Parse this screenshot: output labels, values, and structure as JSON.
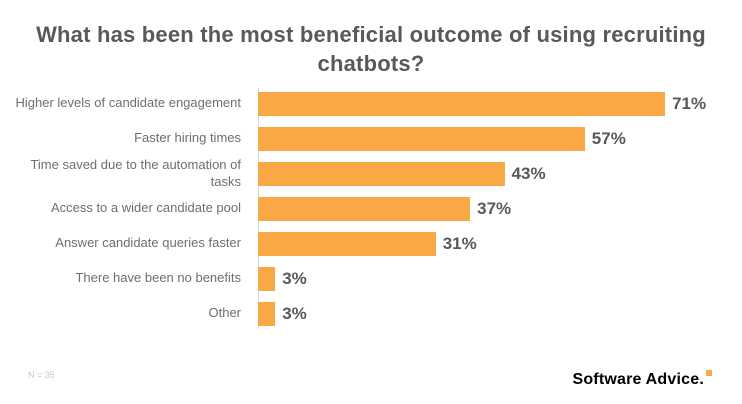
{
  "title": "What has been the most beneficial outcome of using recruiting chatbots?",
  "footer": {
    "sample_note": "N = 35",
    "brand": "Software Advice."
  },
  "colors": {
    "bar": "#F9A845",
    "title": "#58595B",
    "label": "#6D6E71",
    "value": "#58595B",
    "note": "#C6C7C9",
    "axis": "#D8D9DA",
    "brand_accent": "#F9A845"
  },
  "chart_data": {
    "type": "bar",
    "orientation": "horizontal",
    "title": "What has been the most beneficial outcome of using recruiting chatbots?",
    "categories": [
      "Higher levels of candidate engagement",
      "Faster hiring times",
      "Time saved due to the automation of tasks",
      "Access to a wider candidate pool",
      "Answer candidate queries faster",
      "There have been no benefits",
      "Other"
    ],
    "values": [
      71,
      57,
      43,
      37,
      31,
      3,
      3
    ],
    "value_labels": [
      "71%",
      "57%",
      "43%",
      "37%",
      "31%",
      "3%",
      "3%"
    ],
    "xlabel": "",
    "ylabel": "",
    "xlim": [
      0,
      75
    ],
    "grid": false,
    "legend": "none"
  }
}
